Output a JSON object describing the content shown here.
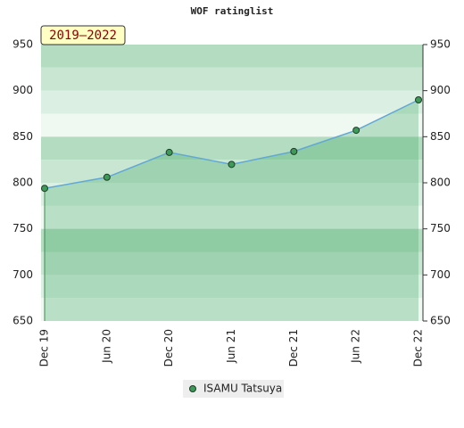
{
  "chart_data": {
    "type": "line",
    "title": "WOF ratinglist",
    "badge": "2019–2022",
    "categories": [
      "Dec 19",
      "Jun 20",
      "Dec 20",
      "Jun 21",
      "Dec 21",
      "Jun 22",
      "Dec 22"
    ],
    "series": [
      {
        "name": "ISAMU Tatsuya",
        "color": "#3d9a58",
        "line_color": "#62a8d6",
        "values": [
          794,
          806,
          833,
          820,
          834,
          857,
          890
        ]
      }
    ],
    "ylim": [
      650,
      950
    ],
    "yticks": [
      650,
      700,
      750,
      800,
      850,
      900,
      950
    ],
    "grid": true
  }
}
